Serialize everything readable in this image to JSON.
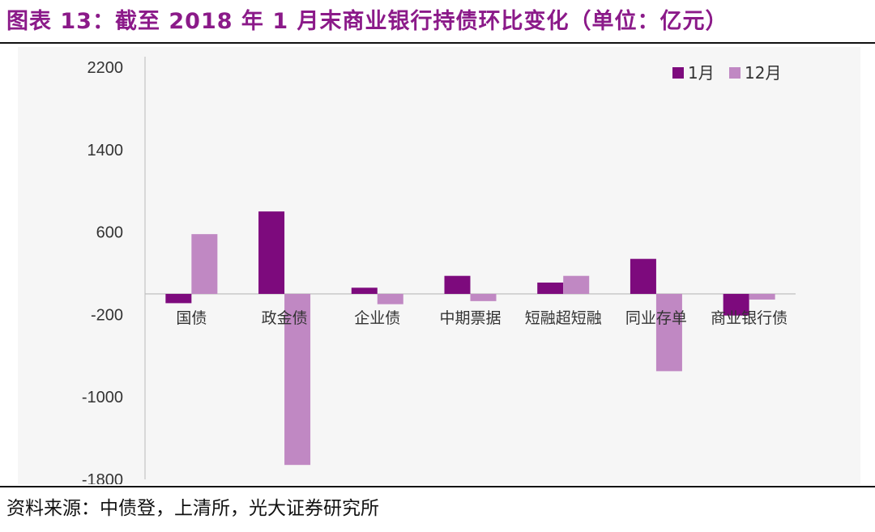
{
  "title": "图表 13：截至 2018 年 1 月末商业银行持债环比变化（单位：亿元）",
  "source": "资料来源：中债登，上清所，光大证券研究所",
  "colors": {
    "title": "#8b1a89",
    "series_jan": "#7d0a7d",
    "series_dec": "#c088c3",
    "axis": "#bbbbbb",
    "background": "#f6f6f6"
  },
  "chart_data": {
    "type": "bar",
    "categories": [
      "国债",
      "政金债",
      "企业债",
      "中期票据",
      "短融超短融",
      "同业存单",
      "商业银行债"
    ],
    "series": [
      {
        "name": "1月",
        "values": [
          -90,
          800,
          60,
          175,
          110,
          340,
          -210
        ]
      },
      {
        "name": "12月",
        "values": [
          580,
          -1660,
          -100,
          -70,
          175,
          -750,
          -55
        ]
      }
    ],
    "yticks": [
      2200,
      1400,
      600,
      -200,
      -1000,
      -1800
    ],
    "ylim": [
      -1800,
      2200
    ],
    "legend_position": "top-right",
    "grid": false
  }
}
